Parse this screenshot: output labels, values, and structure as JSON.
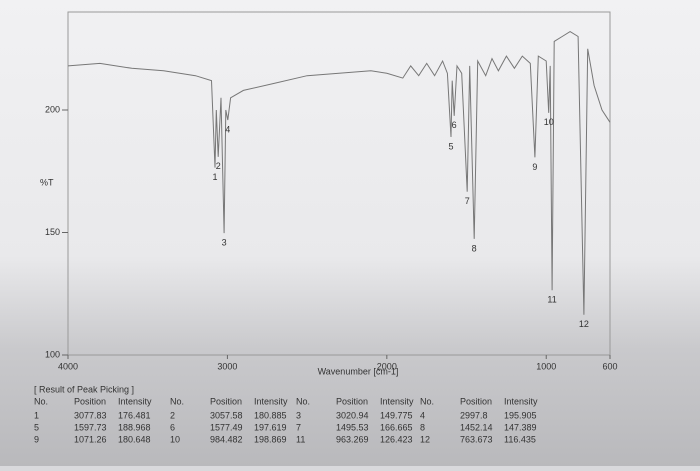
{
  "chart_data": {
    "type": "line",
    "x_label": "Wavenumber [cm-1]",
    "y_label": "%T",
    "xlim": [
      4000,
      600
    ],
    "ylim": [
      100,
      240
    ],
    "xticks": [
      4000,
      3000,
      2000,
      1000,
      600
    ],
    "yticks": [
      100,
      150,
      200
    ],
    "series": [
      {
        "color": "#777777",
        "x": [
          4000,
          3800,
          3600,
          3400,
          3200,
          3100,
          3077.83,
          3070,
          3057.58,
          3040,
          3020.94,
          3010,
          2997.8,
          2980,
          2900,
          2700,
          2500,
          2300,
          2100,
          2000,
          1900,
          1850,
          1800,
          1750,
          1700,
          1650,
          1620,
          1597.73,
          1590,
          1577.49,
          1560,
          1530,
          1495.53,
          1480,
          1452.14,
          1430,
          1380,
          1340,
          1300,
          1250,
          1200,
          1150,
          1100,
          1071.26,
          1050,
          1000,
          984.482,
          975,
          963.269,
          950,
          900,
          850,
          800,
          763.673,
          740,
          700,
          650,
          600
        ],
        "values": [
          218,
          219,
          217,
          216,
          214,
          212,
          176.481,
          200,
          180.885,
          205,
          149.775,
          200,
          195.905,
          205,
          208,
          211,
          214,
          215,
          216,
          215,
          213,
          218,
          214,
          219,
          214,
          220,
          215,
          188.968,
          212,
          197.619,
          218,
          215,
          166.665,
          218,
          147.389,
          220,
          214,
          221,
          216,
          222,
          217,
          222,
          219,
          180.648,
          222,
          220,
          198.869,
          218,
          126.423,
          228,
          230,
          232,
          230,
          116.435,
          225,
          210,
          200,
          195
        ]
      }
    ],
    "peak_table": {
      "title": "[ Result of Peak Picking ]",
      "headers": [
        "No.",
        "Position",
        "Intensity"
      ],
      "rows": [
        [
          1,
          3077.83,
          176.481
        ],
        [
          2,
          3057.58,
          180.885
        ],
        [
          3,
          3020.94,
          149.775
        ],
        [
          4,
          2997.8,
          195.905
        ],
        [
          5,
          1597.73,
          188.968
        ],
        [
          6,
          1577.49,
          197.619
        ],
        [
          7,
          1495.53,
          166.665
        ],
        [
          8,
          1452.14,
          147.389
        ],
        [
          9,
          1071.26,
          180.648
        ],
        [
          10,
          984.482,
          198.869
        ],
        [
          11,
          963.269,
          126.423
        ],
        [
          12,
          763.673,
          116.435
        ]
      ]
    }
  }
}
